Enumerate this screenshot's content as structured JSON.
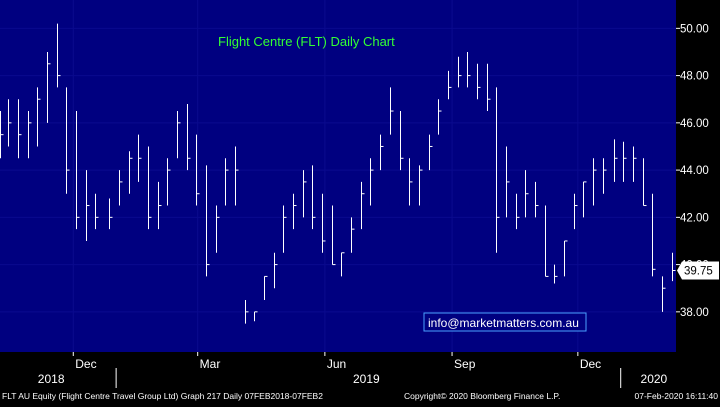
{
  "chart_data": {
    "type": "ohlc",
    "title": "Flight Centre (FLT) Daily Chart",
    "watermark": "info@marketmatters.com.au",
    "last_price_label": "39.75",
    "ylim": [
      36.3,
      51.2
    ],
    "y_ticks": [
      "38.00",
      "40.00",
      "42.00",
      "44.00",
      "46.00",
      "48.00",
      "50.00"
    ],
    "y_tick_values": [
      38,
      40,
      42,
      44,
      46,
      48,
      50
    ],
    "x_date_range": [
      "2018-10-09",
      "2020-02-10"
    ],
    "x_month_ticks": [
      {
        "label": "Dec",
        "date": "2018-12-01"
      },
      {
        "label": "Mar",
        "date": "2019-03-01"
      },
      {
        "label": "Jun",
        "date": "2019-06-01"
      },
      {
        "label": "Sep",
        "date": "2019-09-01"
      },
      {
        "label": "Dec",
        "date": "2019-12-01"
      }
    ],
    "x_year_labels": [
      {
        "label": "2018",
        "date": "2018-11-15"
      },
      {
        "label": "2019",
        "date": "2019-07-01"
      },
      {
        "label": "2020",
        "date": "2020-01-25"
      }
    ],
    "year_dividers": [
      "2019-01-01",
      "2020-01-01"
    ],
    "grid": true,
    "colors": {
      "background": "#000080",
      "grid": "#0a0a8e",
      "bars": "#ffffff",
      "title": "#33ff33",
      "last_price_box": "#ffffff",
      "axis": "#000000"
    },
    "series": [
      {
        "x": [
          "2018-10-09",
          "2018-10-15",
          "2018-10-22",
          "2018-10-29",
          "2018-11-05",
          "2018-11-12",
          "2018-11-19",
          "2018-11-26",
          "2018-12-03",
          "2018-12-10",
          "2018-12-17",
          "2018-12-27",
          "2019-01-03",
          "2019-01-10",
          "2019-01-17",
          "2019-01-24",
          "2019-01-31",
          "2019-02-07",
          "2019-02-14",
          "2019-02-21",
          "2019-02-28",
          "2019-03-07",
          "2019-03-14",
          "2019-03-21",
          "2019-03-28",
          "2019-04-04",
          "2019-04-11",
          "2019-04-18",
          "2019-04-25",
          "2019-05-02",
          "2019-05-09",
          "2019-05-16",
          "2019-05-23",
          "2019-05-30",
          "2019-06-06",
          "2019-06-13",
          "2019-06-20",
          "2019-06-27",
          "2019-07-04",
          "2019-07-11",
          "2019-07-18",
          "2019-07-25",
          "2019-08-01",
          "2019-08-08",
          "2019-08-15",
          "2019-08-22",
          "2019-08-29",
          "2019-09-05",
          "2019-09-12",
          "2019-09-19",
          "2019-09-26",
          "2019-10-03",
          "2019-10-10",
          "2019-10-17",
          "2019-10-24",
          "2019-10-31",
          "2019-11-07",
          "2019-11-14",
          "2019-11-21",
          "2019-11-28",
          "2019-12-05",
          "2019-12-12",
          "2019-12-19",
          "2019-12-27",
          "2020-01-03",
          "2020-01-10",
          "2020-01-17",
          "2020-01-24",
          "2020-01-31",
          "2020-02-07"
        ],
        "high": [
          46.5,
          47.0,
          47.0,
          46.5,
          47.5,
          49.0,
          50.2,
          47.5,
          46.5,
          44.0,
          43.0,
          42.8,
          44.0,
          44.8,
          45.5,
          45.0,
          43.5,
          44.5,
          46.5,
          46.8,
          45.5,
          44.2,
          42.5,
          44.5,
          45.0,
          38.5,
          38.0,
          39.5,
          40.5,
          42.5,
          43.0,
          44.0,
          44.2,
          43.0,
          42.5,
          40.5,
          42.0,
          43.5,
          44.5,
          45.5,
          47.5,
          46.5,
          44.5,
          44.2,
          45.5,
          47.0,
          48.2,
          48.8,
          49.0,
          48.5,
          48.5,
          47.5,
          45.0,
          43.0,
          44.0,
          43.5,
          42.5,
          40.0,
          41.0,
          43.0,
          43.5,
          44.5,
          44.5,
          45.3,
          45.2,
          45.0,
          44.5,
          43.0,
          39.5,
          40.5
        ],
        "low": [
          44.5,
          45.0,
          44.5,
          44.5,
          45.0,
          46.0,
          47.5,
          43.0,
          41.5,
          41.0,
          41.5,
          41.5,
          42.5,
          43.0,
          43.5,
          41.5,
          41.5,
          42.5,
          44.5,
          44.0,
          42.5,
          39.5,
          40.5,
          42.5,
          42.5,
          37.5,
          37.6,
          38.5,
          39.0,
          40.5,
          41.5,
          42.0,
          41.5,
          40.5,
          40.0,
          39.5,
          40.5,
          41.5,
          42.5,
          44.0,
          45.5,
          44.0,
          42.5,
          42.5,
          44.0,
          45.5,
          47.0,
          47.5,
          47.5,
          47.0,
          46.5,
          40.5,
          42.0,
          41.5,
          42.0,
          42.0,
          39.5,
          39.2,
          39.5,
          41.5,
          42.0,
          42.5,
          43.0,
          43.5,
          43.5,
          43.5,
          42.5,
          39.5,
          38.0,
          39.3
        ],
        "close": [
          45.5,
          46.0,
          45.5,
          46.0,
          47.0,
          48.5,
          48.0,
          44.0,
          42.0,
          42.5,
          42.0,
          42.0,
          43.5,
          44.5,
          44.5,
          42.0,
          42.5,
          44.0,
          46.0,
          44.5,
          43.0,
          40.0,
          42.0,
          44.0,
          44.0,
          38.0,
          38.0,
          39.5,
          40.0,
          42.0,
          42.5,
          43.5,
          42.0,
          41.0,
          40.0,
          40.5,
          41.5,
          43.0,
          44.0,
          45.0,
          46.5,
          44.5,
          43.5,
          44.0,
          45.0,
          46.5,
          47.5,
          48.0,
          48.0,
          47.5,
          47.0,
          42.0,
          43.5,
          42.0,
          43.0,
          42.5,
          39.5,
          39.5,
          41.0,
          42.5,
          43.5,
          44.0,
          44.0,
          44.5,
          44.5,
          44.5,
          42.5,
          39.8,
          39.0,
          39.75
        ]
      }
    ]
  },
  "footer": {
    "left_text": "FLT AU Equity (Flight Centre Travel Group Ltd) Graph 217  Daily 07FEB2018-07FEB2",
    "copyright": "Copyright© 2020 Bloomberg Finance L.P.",
    "timestamp": "07-Feb-2020 16:11:40"
  }
}
